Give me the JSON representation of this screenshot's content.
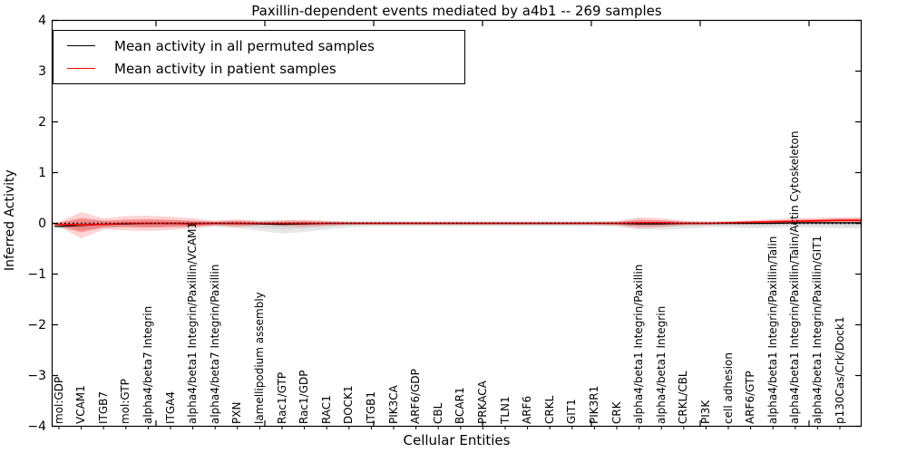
{
  "chart_data": {
    "type": "line",
    "title": "Paxillin-dependent events mediated by a4b1 -- 269 samples",
    "xlabel": "Cellular Entities",
    "ylabel": "Inferred Activity",
    "ylim": [
      -4,
      4
    ],
    "grid": false,
    "legend_position": "upper left",
    "yticks": [
      {
        "value": 4,
        "label": "4"
      },
      {
        "value": 3,
        "label": "3"
      },
      {
        "value": 2,
        "label": "2"
      },
      {
        "value": 1,
        "label": "1"
      },
      {
        "value": 0,
        "label": "0"
      },
      {
        "value": -1,
        "label": "−1"
      },
      {
        "value": -2,
        "label": "−2"
      },
      {
        "value": -3,
        "label": "−3"
      },
      {
        "value": -4,
        "label": "−4"
      }
    ],
    "zero_reference_line": {
      "value": 0,
      "style": "dotted",
      "color": "#000000"
    },
    "categories": [
      "mol:GDP",
      "VCAM1",
      "ITGB7",
      "mol:GTP",
      "alpha4/beta7 Integrin",
      "ITGA4",
      "alpha4/beta1 Integrin/Paxillin/VCAM1",
      "alpha4/beta7 Integrin/Paxillin",
      "PXN",
      "lamellipodium assembly",
      "Rac1/GTP",
      "Rac1/GDP",
      "RAC1",
      "DOCK1",
      "ITGB1",
      "PIK3CA",
      "ARF6/GDP",
      "CBL",
      "BCAR1",
      "PRKACA",
      "TLN1",
      "ARF6",
      "CRKL",
      "GIT1",
      "PIK3R1",
      "CRK",
      "alpha4/beta1 Integrin/Paxillin",
      "alpha4/beta1 Integrin",
      "CRKL/CBL",
      "PI3K",
      "cell adhesion",
      "ARF6/GTP",
      "alpha4/beta1 Integrin/Paxillin/Talin",
      "alpha4/beta1 Integrin/Paxillin/Talin/Actin Cytoskeleton",
      "alpha4/beta1 Integrin/Paxillin/GIT1",
      "p130Cas/Crk/Dock1"
    ],
    "series": [
      {
        "name": "Mean activity in all permuted samples",
        "color": "#000000",
        "band_fill_outer": "rgba(128,128,128,0.18)",
        "band_fill_inner": "rgba(128,128,128,0.16)",
        "mean": [
          -0.06,
          -0.04,
          -0.02,
          -0.01,
          0,
          0,
          0,
          0,
          0,
          -0.01,
          -0.02,
          -0.01,
          0,
          0,
          0,
          0,
          0,
          0,
          0,
          0,
          0,
          0,
          0,
          0,
          0,
          0,
          -0.01,
          -0.01,
          0,
          0,
          0,
          0,
          0,
          0.01,
          0.01,
          0.01
        ],
        "upper": [
          0.02,
          0.08,
          0.06,
          0.05,
          0.06,
          0.06,
          0.05,
          0.05,
          0.06,
          0.06,
          0.06,
          0.06,
          0.05,
          0.05,
          0.05,
          0.05,
          0.05,
          0.05,
          0.05,
          0.05,
          0.05,
          0.05,
          0.05,
          0.05,
          0.05,
          0.05,
          0.06,
          0.06,
          0.05,
          0.05,
          0.05,
          0.05,
          0.05,
          0.05,
          0.05,
          0.05
        ],
        "lower": [
          -0.1,
          -0.14,
          -0.1,
          -0.07,
          -0.08,
          -0.08,
          -0.08,
          -0.07,
          -0.09,
          -0.15,
          -0.2,
          -0.17,
          -0.12,
          -0.08,
          -0.06,
          -0.06,
          -0.06,
          -0.06,
          -0.06,
          -0.06,
          -0.06,
          -0.06,
          -0.06,
          -0.06,
          -0.06,
          -0.07,
          -0.12,
          -0.13,
          -0.11,
          -0.08,
          -0.08,
          -0.1,
          -0.09,
          -0.08,
          -0.09,
          -0.1
        ]
      },
      {
        "name": "Mean activity in patient samples",
        "color": "#ff0000",
        "band_fill_outer": "rgba(255,0,0,0.17)",
        "band_fill_inner": "rgba(255,0,0,0.28)",
        "mean": [
          -0.02,
          -0.03,
          -0.02,
          0,
          0,
          0,
          -0.01,
          0,
          0,
          0,
          0,
          0,
          0,
          0,
          0,
          0,
          0,
          0,
          0,
          0,
          0,
          0,
          0,
          0,
          0,
          0,
          0.01,
          0.01,
          0,
          0,
          0.01,
          0.02,
          0.03,
          0.04,
          0.05,
          0.06
        ],
        "upper": [
          0.03,
          0.22,
          0.1,
          0.14,
          0.15,
          0.13,
          0.1,
          0.05,
          0.08,
          0.04,
          0.06,
          0.07,
          0.05,
          0.03,
          0.03,
          0.03,
          0.03,
          0.03,
          0.03,
          0.03,
          0.03,
          0.03,
          0.03,
          0.03,
          0.03,
          0.04,
          0.12,
          0.1,
          0.05,
          0.03,
          0.04,
          0.06,
          0.08,
          0.1,
          0.11,
          0.12
        ],
        "lower": [
          -0.06,
          -0.3,
          -0.12,
          -0.14,
          -0.15,
          -0.13,
          -0.1,
          -0.05,
          -0.08,
          -0.04,
          -0.06,
          -0.07,
          -0.05,
          -0.03,
          -0.03,
          -0.03,
          -0.03,
          -0.03,
          -0.03,
          -0.03,
          -0.03,
          -0.03,
          -0.03,
          -0.03,
          -0.03,
          -0.04,
          -0.1,
          -0.08,
          -0.04,
          -0.03,
          -0.02,
          -0.02,
          -0.01,
          0,
          0,
          0.01
        ]
      }
    ]
  }
}
